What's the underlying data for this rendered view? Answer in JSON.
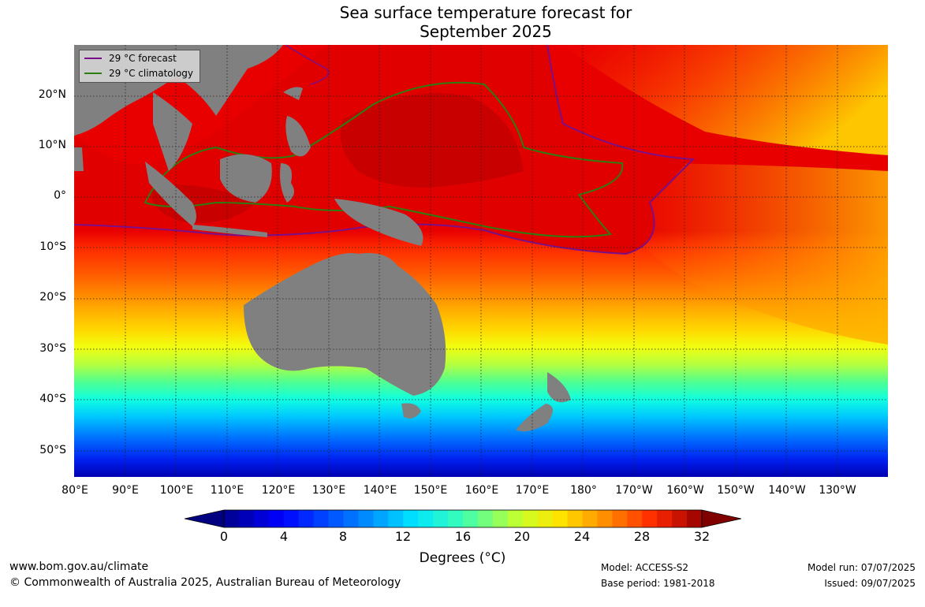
{
  "title": {
    "line1": "Sea surface temperature forecast for",
    "line2": "September 2025"
  },
  "legend": {
    "forecast_label": "29 °C  forecast",
    "forecast_color": "#7a0f8a",
    "climatology_label": "29 °C  climatology",
    "climatology_color": "#2e7d10"
  },
  "lat_labels": [
    "20°N",
    "10°N",
    "0°",
    "10°S",
    "20°S",
    "30°S",
    "40°S",
    "50°S"
  ],
  "lon_labels": [
    "80°E",
    "90°E",
    "100°E",
    "110°E",
    "120°E",
    "130°E",
    "140°E",
    "150°E",
    "160°E",
    "170°E",
    "180°",
    "170°W",
    "160°W",
    "150°W",
    "140°W",
    "130°W"
  ],
  "colorbar": {
    "ticks": [
      "0",
      "4",
      "8",
      "12",
      "16",
      "20",
      "24",
      "28",
      "32"
    ],
    "label": "Degrees (°C)"
  },
  "footer": {
    "url": "www.bom.gov.au/climate",
    "copyright": "© Commonwealth of Australia 2025, Australian Bureau of Meteorology",
    "model": "Model: ACCESS-S2",
    "base_period": "Base period: 1981-2018",
    "model_run": "Model run: 07/07/2025",
    "issued": "Issued: 09/07/2025"
  },
  "colors": {
    "land": "#808080",
    "warm_pool": "#c80000",
    "hot": "#e80000",
    "cold": "#0000b0"
  }
}
